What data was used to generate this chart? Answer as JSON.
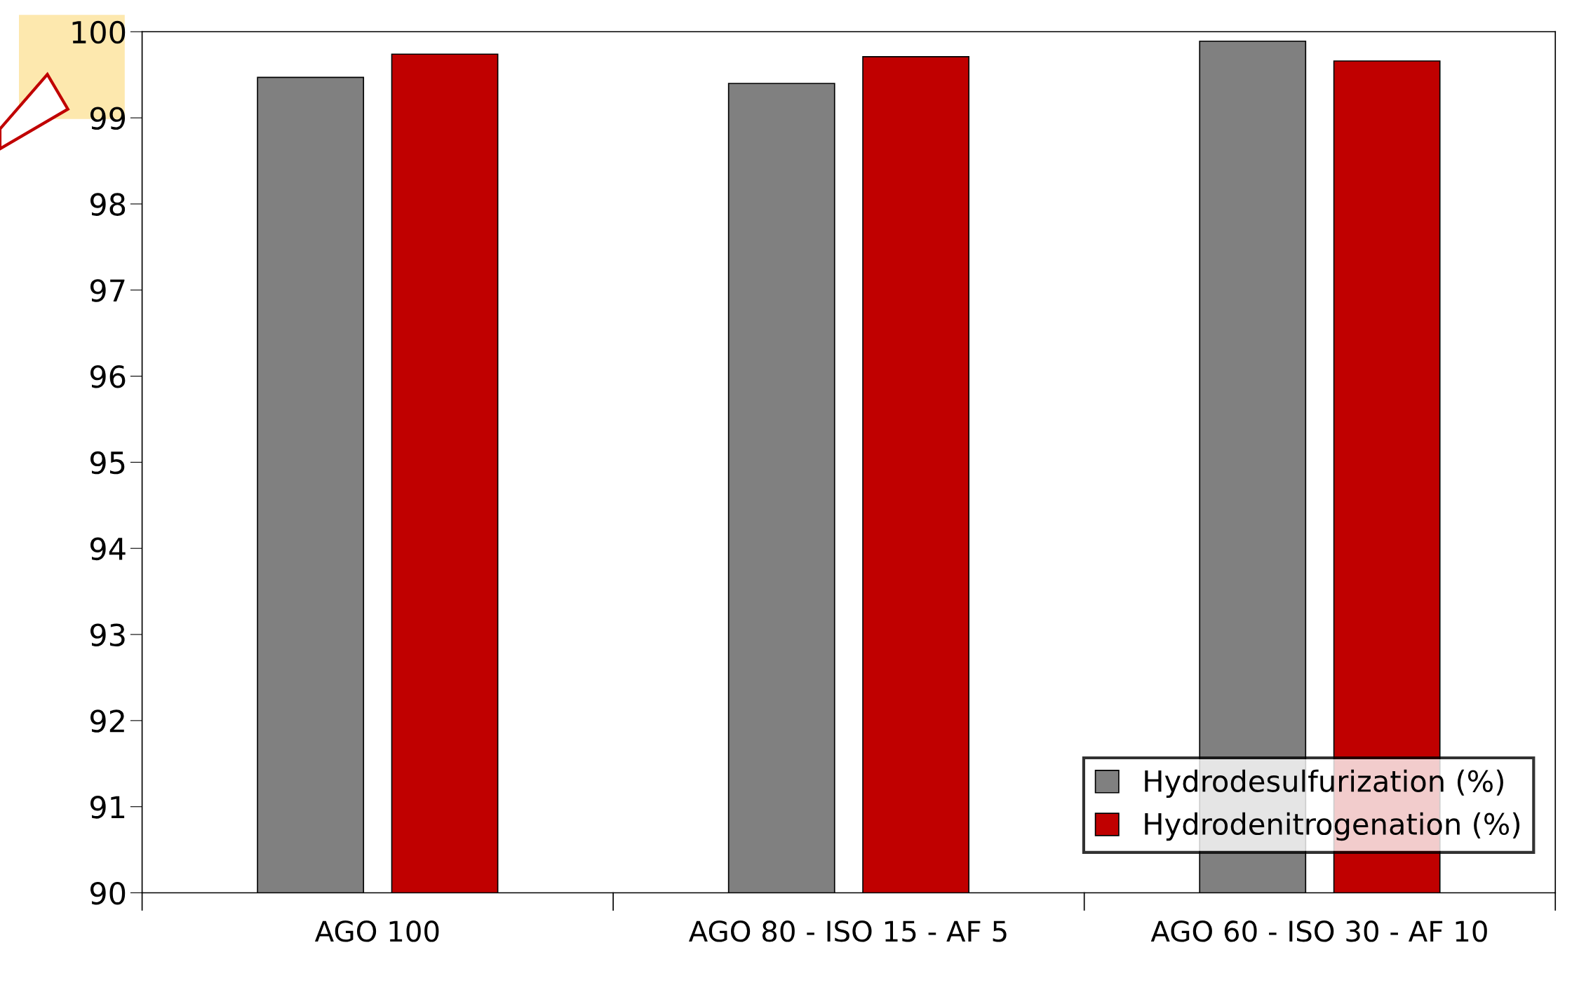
{
  "chart_data": {
    "type": "bar",
    "categories": [
      "AGO 100",
      "AGO 80 - ISO 15 - AF 5",
      "AGO 60 - ISO 30 - AF 10"
    ],
    "series": [
      {
        "name": "Hydrodesulfurization (%)",
        "color": "#808080",
        "values": [
          99.47,
          99.4,
          99.89
        ]
      },
      {
        "name": "Hydrodenitrogenation (%)",
        "color": "#c00000",
        "values": [
          99.74,
          99.71,
          99.66
        ]
      }
    ],
    "ylim": [
      90,
      100
    ],
    "yticks": [
      90,
      91,
      92,
      93,
      94,
      95,
      96,
      97,
      98,
      99,
      100
    ],
    "grid": false,
    "legend": "bottom right"
  }
}
